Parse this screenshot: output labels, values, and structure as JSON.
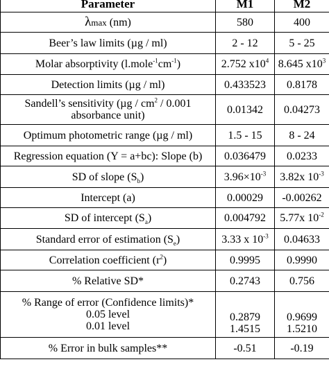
{
  "headers": {
    "parameter": "Parameter",
    "m1": "M1",
    "m2": "M2"
  },
  "rows": [
    {
      "label": "λmax (nm)",
      "m1": "580",
      "m2": "400"
    },
    {
      "label": "Beer’s law limits (µg / ml)",
      "m1": "2 - 12",
      "m2": "5 - 25"
    },
    {
      "label": "Molar absorptivity (l.mole-1cm-1)",
      "m1": "2.752 x10⁴",
      "m2": "8.645 x10³"
    },
    {
      "label": "Detection limits (µg / ml)",
      "m1": "0.433523",
      "m2": "0.8178"
    },
    {
      "label_line1": "Sandell’s sensitivity (µg / cm² / 0.001",
      "label_line2": "absorbance unit)",
      "m1": "0.01342",
      "m2": "0.04273"
    },
    {
      "label": "Optimum photometric range (µg / ml)",
      "m1": "1.5 - 15",
      "m2": "8 - 24"
    },
    {
      "label": "Regression equation (Y = a+bc): Slope (b)",
      "m1": "0.036479",
      "m2": "0.0233"
    },
    {
      "label": "SD of slope (Sb)",
      "m1": "3.96×10-3",
      "m2": "3.82x 10-3"
    },
    {
      "label": "Intercept (a)",
      "m1": "0.00029",
      "m2": "-0.00262"
    },
    {
      "label": "SD of intercept (Sa)",
      "m1": "0.004792",
      "m2": "5.77x 10-2"
    },
    {
      "label": "Standard error of estimation (Se)",
      "m1": "3.33 x 10-3",
      "m2": "0.04633"
    },
    {
      "label": "Correlation coefficient (r2)",
      "m1": "0.9995",
      "m2": "0.9990"
    },
    {
      "label": "% Relative SD*",
      "m1": "0.2743",
      "m2": "0.756"
    },
    {
      "label_line1": "% Range of error (Confidence limits)*",
      "label_line2": "0.05 level",
      "label_line3": "0.01 level",
      "m1_line1": "0.2879",
      "m1_line2": "1.4515",
      "m2_line1": "0.9699",
      "m2_line2": "1.5210"
    },
    {
      "label": "% Error in bulk samples**",
      "m1": "-0.51",
      "m2": "-0.19"
    }
  ]
}
